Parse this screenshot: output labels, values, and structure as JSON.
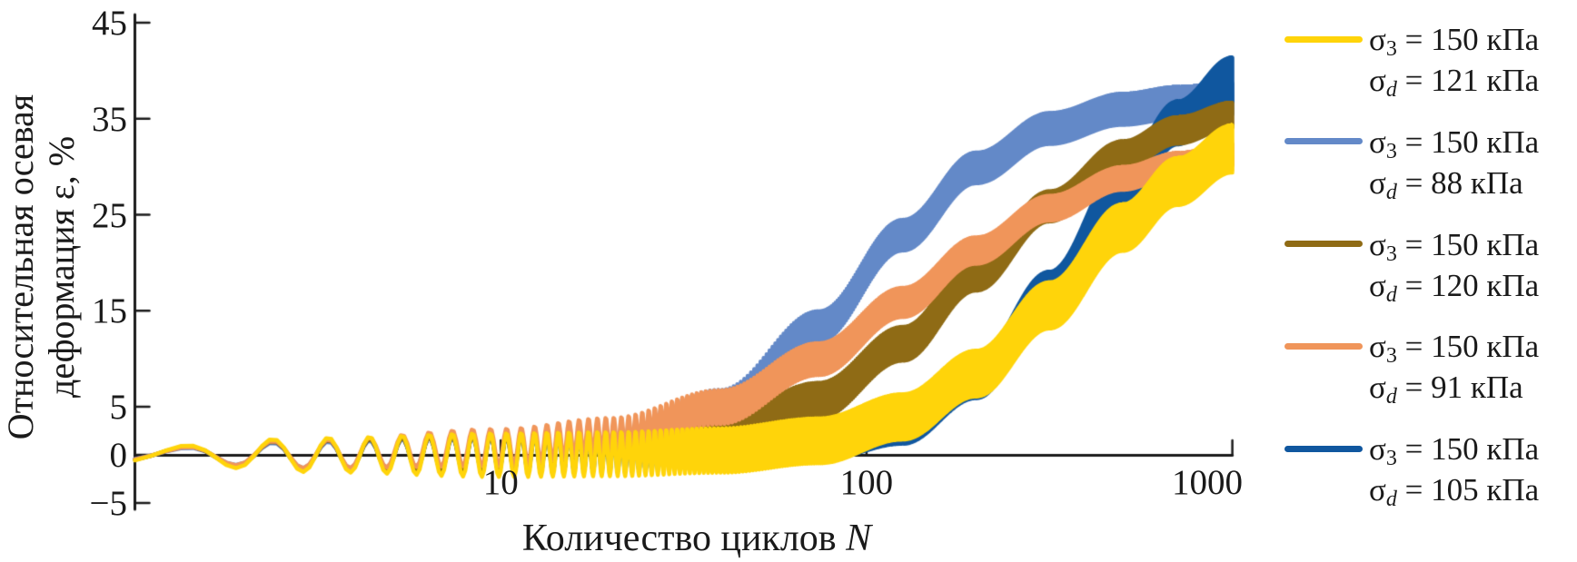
{
  "chart_data": {
    "type": "line",
    "variant": "cyclic-strain-oscillation-bands",
    "title": "",
    "xlabel_text": "Количество циклов ",
    "xlabel_var": "N",
    "ylabel_lines": [
      "Относительная осевая",
      "деформация ε, %"
    ],
    "x_scale": "log",
    "x_range": [
      1,
      1000
    ],
    "x_ticks": [
      {
        "value": 10,
        "label": "10"
      },
      {
        "value": 100,
        "label": "100"
      },
      {
        "value": 1000,
        "label": "1000"
      }
    ],
    "y_range": [
      -5,
      45
    ],
    "y_ticks": [
      {
        "value": 45,
        "label": "45"
      },
      {
        "value": 35,
        "label": "35"
      },
      {
        "value": 25,
        "label": "25"
      },
      {
        "value": 15,
        "label": "15"
      },
      {
        "value": 5,
        "label": "5"
      },
      {
        "value": 0,
        "label": "0"
      },
      {
        "value": -5,
        "label": "−5"
      }
    ],
    "grid": false,
    "legend_position": "right",
    "axis_color": "#1a1a1a",
    "oscillation_note": "Each loading cycle N produces one strain oscillation: eps(N) = mean(log10 N) + amp(log10 N) * sin(2*pi*N - 0.8); dense oscillations render as solid bands",
    "log10N_grid": [
      0,
      0.5,
      1.0,
      1.3,
      1.6,
      1.87,
      2.1,
      2.3,
      2.5,
      2.7,
      2.85,
      3.0
    ],
    "draw_order": [
      1,
      4,
      2,
      3,
      0
    ],
    "series": [
      {
        "name": "σ3 = 150 кПа, σd = 121 кПа",
        "color": "#FFD40A",
        "legend": {
          "line1": {
            "base": "σ",
            "sub": "3",
            "sub_italic": false,
            "rest": " = 150 кПа"
          },
          "line2": {
            "base": "σ",
            "sub": "d",
            "sub_italic": true,
            "rest": " = 121 кПа"
          }
        },
        "mean": [
          0,
          0,
          0,
          0.1,
          0.5,
          1.5,
          4.0,
          8.5,
          15.6,
          23.7,
          28.5,
          31.9
        ],
        "amp": [
          0.8,
          1.8,
          2.3,
          2.33,
          2.36,
          2.39,
          2.41,
          2.43,
          2.45,
          2.47,
          2.49,
          2.5
        ]
      },
      {
        "name": "σ3 = 150 кПа, σd = 88 кПа",
        "color": "#6389C8",
        "legend": {
          "line1": {
            "base": "σ",
            "sub": "3",
            "sub_italic": false,
            "rest": " = 150 кПа"
          },
          "line2": {
            "base": "σ",
            "sub": "d",
            "sub_italic": true,
            "rest": " = 88 кПа"
          }
        },
        "mean": [
          0,
          0,
          0.4,
          1.5,
          5.2,
          13.4,
          22.9,
          29.9,
          34.0,
          36.0,
          36.7,
          37.1
        ],
        "amp": [
          0.6,
          1.4,
          1.6,
          1.61,
          1.62,
          1.62,
          1.63,
          1.63,
          1.64,
          1.64,
          1.65,
          1.65
        ]
      },
      {
        "name": "σ3 = 150 кПа, σd = 120 кПа",
        "color": "#8F6B15",
        "legend": {
          "line1": {
            "base": "σ",
            "sub": "3",
            "sub_italic": false,
            "rest": " = 150 кПа"
          },
          "line2": {
            "base": "σ",
            "sub": "d",
            "sub_italic": true,
            "rest": " = 120 кПа"
          }
        },
        "mean": [
          0,
          0,
          0.2,
          0.7,
          2.2,
          5.7,
          11.6,
          18.8,
          25.9,
          31.2,
          33.8,
          35.4
        ],
        "amp": [
          0.7,
          1.55,
          1.85,
          1.88,
          1.9,
          1.88,
          1.8,
          1.7,
          1.6,
          1.5,
          1.4,
          1.3
        ]
      },
      {
        "name": "σ3 = 150 кПа, σd = 91 кПа",
        "color": "#F0955A",
        "legend": {
          "line1": {
            "base": "σ",
            "sub": "3",
            "sub_italic": false,
            "rest": " = 150 кПа"
          },
          "line2": {
            "base": "σ",
            "sub": "d",
            "sub_italic": true,
            "rest": " = 91 кПа"
          }
        },
        "mean": [
          0,
          0.1,
          0.8,
          2.0,
          5.0,
          10.0,
          15.9,
          21.3,
          25.7,
          28.8,
          30.3,
          31.3
        ],
        "amp": [
          0.65,
          1.5,
          1.95,
          1.9,
          1.8,
          1.7,
          1.55,
          1.4,
          1.3,
          1.2,
          1.15,
          1.15
        ]
      },
      {
        "name": "σ3 = 150 кПа, σd = 105 кПа",
        "color": "#10579F",
        "legend": {
          "line1": {
            "base": "σ",
            "sub": "3",
            "sub_italic": false,
            "rest": " = 150 кПа"
          },
          "line2": {
            "base": "σ",
            "sub": "d",
            "sub_italic": true,
            "rest": " = 105 кПа"
          }
        },
        "mean": [
          0,
          0,
          0.1,
          0.2,
          0.7,
          1.4,
          3.2,
          8.0,
          17.0,
          28.1,
          34.6,
          39.1
        ],
        "amp": [
          0.7,
          1.55,
          1.9,
          1.93,
          1.97,
          2.0,
          2.05,
          2.1,
          2.15,
          2.22,
          2.28,
          2.35
        ]
      }
    ]
  }
}
